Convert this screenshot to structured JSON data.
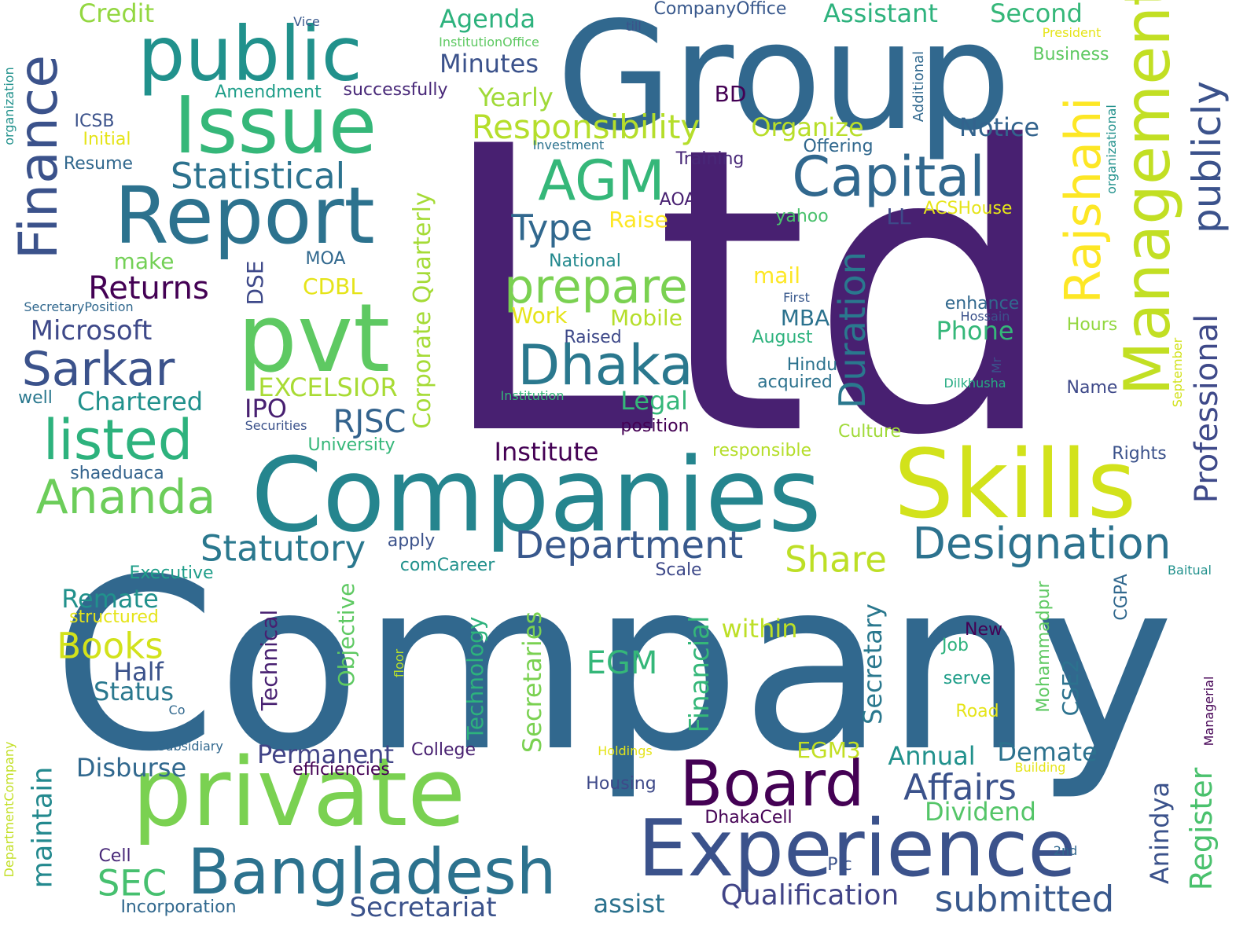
{
  "words": [
    {
      "text": "Company",
      "color": "#31688e"
    },
    {
      "text": "Ltd",
      "color": "#482071"
    },
    {
      "text": "Group",
      "color": "#31688e"
    },
    {
      "text": "Companies",
      "color": "#25858e"
    },
    {
      "text": "private",
      "color": "#7ad151"
    },
    {
      "text": "Skills",
      "color": "#d2e21b"
    },
    {
      "text": "pvt",
      "color": "#5ec962"
    },
    {
      "text": "Report",
      "color": "#2c728e"
    },
    {
      "text": "Issue",
      "color": "#35b779"
    },
    {
      "text": "public",
      "color": "#21918c"
    },
    {
      "text": "Experience",
      "color": "#3b528b"
    },
    {
      "text": "Board",
      "color": "#440154"
    },
    {
      "text": "Bangladesh",
      "color": "#2c728e"
    },
    {
      "text": "Management",
      "color": "#c2df23"
    },
    {
      "text": "Capital",
      "color": "#31688e"
    },
    {
      "text": "Dhaka",
      "color": "#2a788e"
    },
    {
      "text": "AGM",
      "color": "#35b779"
    },
    {
      "text": "listed",
      "color": "#2db27d"
    },
    {
      "text": "prepare",
      "color": "#7ad151"
    },
    {
      "text": "Sarkar",
      "color": "#3b528b"
    },
    {
      "text": "Designation",
      "color": "#2c728e"
    },
    {
      "text": "Ananda",
      "color": "#6ccd5a"
    },
    {
      "text": "Finance",
      "color": "#3b528b"
    },
    {
      "text": "Rajshahi",
      "color": "#fde725"
    },
    {
      "text": "publicly",
      "color": "#3b528b"
    },
    {
      "text": "Department",
      "color": "#38588c"
    },
    {
      "text": "Statutory",
      "color": "#2a788e"
    },
    {
      "text": "Share",
      "color": "#bddf26"
    },
    {
      "text": "Affairs",
      "color": "#3b528b"
    },
    {
      "text": "submitted",
      "color": "#38588c"
    },
    {
      "text": "Qualification",
      "color": "#414487"
    },
    {
      "text": "Secretariat",
      "color": "#3b528b"
    },
    {
      "text": "Statistical",
      "color": "#2c728e"
    },
    {
      "text": "Responsibility",
      "color": "#b5de2b"
    },
    {
      "text": "Type",
      "color": "#31688e"
    },
    {
      "text": "Duration",
      "color": "#2a788e"
    },
    {
      "text": "Corporate Quarterly",
      "color": "#a5db36"
    },
    {
      "text": "Professional",
      "color": "#3e4989"
    },
    {
      "text": "Register",
      "color": "#4ac16d"
    },
    {
      "text": "Anindya",
      "color": "#3b528b"
    },
    {
      "text": "Secretaries",
      "color": "#7ad151"
    },
    {
      "text": "Secretary",
      "color": "#2a788e"
    },
    {
      "text": "Financial",
      "color": "#35b779"
    },
    {
      "text": "maintain",
      "color": "#23898e"
    },
    {
      "text": "Books",
      "color": "#d2e21b"
    },
    {
      "text": "SEC",
      "color": "#46c06f"
    },
    {
      "text": "Returns",
      "color": "#440154"
    },
    {
      "text": "Microsoft",
      "color": "#3e4989"
    },
    {
      "text": "Chartered",
      "color": "#21918c"
    },
    {
      "text": "EXCELSIOR",
      "color": "#a8db34"
    },
    {
      "text": "RJSC",
      "color": "#33638d"
    },
    {
      "text": "IPO",
      "color": "#482071"
    },
    {
      "text": "EGM",
      "color": "#35b779"
    },
    {
      "text": "Minutes",
      "color": "#3b528b"
    },
    {
      "text": "Agenda",
      "color": "#2db27d"
    },
    {
      "text": "Yearly",
      "color": "#a0da39"
    },
    {
      "text": "Organize",
      "color": "#b8de29"
    },
    {
      "text": "Notice",
      "color": "#33638d"
    },
    {
      "text": "Assistant",
      "color": "#2db27d"
    },
    {
      "text": "Second",
      "color": "#35b779"
    },
    {
      "text": "Credit",
      "color": "#93d741"
    },
    {
      "text": "CompanyOffice",
      "color": "#38588c"
    },
    {
      "text": "Business",
      "color": "#5ec962"
    },
    {
      "text": "Amendment",
      "color": "#1f9e89"
    },
    {
      "text": "successfully",
      "color": "#482878"
    },
    {
      "text": "BD",
      "color": "#440154"
    },
    {
      "text": "ICSB",
      "color": "#3b528b"
    },
    {
      "text": "Initial",
      "color": "#e5e419"
    },
    {
      "text": "Resume",
      "color": "#31688e"
    },
    {
      "text": "Investment",
      "color": "#2c728e"
    },
    {
      "text": "Offering",
      "color": "#31688e"
    },
    {
      "text": "Training",
      "color": "#482878"
    },
    {
      "text": "AOA",
      "color": "#482071"
    },
    {
      "text": "Raise",
      "color": "#fde725"
    },
    {
      "text": "yahoo",
      "color": "#4ac16d"
    },
    {
      "text": "LL",
      "color": "#3e4989"
    },
    {
      "text": "ACSHouse",
      "color": "#e5e419"
    },
    {
      "text": "National",
      "color": "#23898e"
    },
    {
      "text": "make",
      "color": "#73d056"
    },
    {
      "text": "MOA",
      "color": "#31688e"
    },
    {
      "text": "DSE",
      "color": "#3e4989"
    },
    {
      "text": "CDBL",
      "color": "#e5e419"
    },
    {
      "text": "mail",
      "color": "#fde725"
    },
    {
      "text": "Work",
      "color": "#e5e419"
    },
    {
      "text": "Mobile",
      "color": "#b5de2b"
    },
    {
      "text": "MBA",
      "color": "#2c728e"
    },
    {
      "text": "Phone",
      "color": "#35b779"
    },
    {
      "text": "August",
      "color": "#2db27d"
    },
    {
      "text": "First",
      "color": "#38588c"
    },
    {
      "text": "enhance",
      "color": "#31688e"
    },
    {
      "text": "Hossain",
      "color": "#3b528b"
    },
    {
      "text": "Hours",
      "color": "#93d741"
    },
    {
      "text": "Raised",
      "color": "#3e4989"
    },
    {
      "text": "Hindu",
      "color": "#2c728e"
    },
    {
      "text": "acquired",
      "color": "#2c728e"
    },
    {
      "text": "Mr",
      "color": "#3b528b"
    },
    {
      "text": "Dilkhusha",
      "color": "#25ab82"
    },
    {
      "text": "Name",
      "color": "#3e4989"
    },
    {
      "text": "Rights",
      "color": "#3b528b"
    },
    {
      "text": "September",
      "color": "#d2e21b"
    },
    {
      "text": "Legal",
      "color": "#35b779"
    },
    {
      "text": "Institution",
      "color": "#35b779"
    },
    {
      "text": "position",
      "color": "#440154"
    },
    {
      "text": "Culture",
      "color": "#a0da39"
    },
    {
      "text": "responsible",
      "color": "#b5de2b"
    },
    {
      "text": "Institute",
      "color": "#440154"
    },
    {
      "text": "Securities",
      "color": "#3b528b"
    },
    {
      "text": "University",
      "color": "#35b779"
    },
    {
      "text": "well",
      "color": "#2a788e"
    },
    {
      "text": "SecretaryPosition",
      "color": "#31688e"
    },
    {
      "text": "shaeduaca",
      "color": "#33638d"
    },
    {
      "text": "apply",
      "color": "#3b528b"
    },
    {
      "text": "comCareer",
      "color": "#21918c"
    },
    {
      "text": "Executive",
      "color": "#1f9e89"
    },
    {
      "text": "Remate",
      "color": "#21918c"
    },
    {
      "text": "structured",
      "color": "#e5e419"
    },
    {
      "text": "Half",
      "color": "#3b528b"
    },
    {
      "text": "Status",
      "color": "#2a788e"
    },
    {
      "text": "Co",
      "color": "#31688e"
    },
    {
      "text": "Subsidiary",
      "color": "#31688e"
    },
    {
      "text": "Disburse",
      "color": "#31688e"
    },
    {
      "text": "efficiencies",
      "color": "#440154"
    },
    {
      "text": "Permanent",
      "color": "#414487"
    },
    {
      "text": "College",
      "color": "#482071"
    },
    {
      "text": "Technical",
      "color": "#482071"
    },
    {
      "text": "Objective",
      "color": "#5ec962"
    },
    {
      "text": "floor",
      "color": "#b5de2b"
    },
    {
      "text": "Technology",
      "color": "#2db27d"
    },
    {
      "text": "within",
      "color": "#bddf26"
    },
    {
      "text": "Scale",
      "color": "#3e4989"
    },
    {
      "text": "EGM3",
      "color": "#c2df23"
    },
    {
      "text": "Annual",
      "color": "#21918c"
    },
    {
      "text": "Demate",
      "color": "#2c728e"
    },
    {
      "text": "Dividend",
      "color": "#54c568"
    },
    {
      "text": "Housing",
      "color": "#3e4989"
    },
    {
      "text": "DhakaCell",
      "color": "#440154"
    },
    {
      "text": "Holdings",
      "color": "#e5e419"
    },
    {
      "text": "Building",
      "color": "#e5e419"
    },
    {
      "text": "New",
      "color": "#440154"
    },
    {
      "text": "Job",
      "color": "#2db27d"
    },
    {
      "text": "serve",
      "color": "#1f9e89"
    },
    {
      "text": "Road",
      "color": "#e5e419"
    },
    {
      "text": "CSE2",
      "color": "#2c728e"
    },
    {
      "text": "Mohammadpur",
      "color": "#5ec962"
    },
    {
      "text": "CGPA",
      "color": "#31688e"
    },
    {
      "text": "Managerial",
      "color": "#440154"
    },
    {
      "text": "Baitual",
      "color": "#21918c"
    },
    {
      "text": "2nd",
      "color": "#31688e"
    },
    {
      "text": "Plc",
      "color": "#3b528b"
    },
    {
      "text": "assist",
      "color": "#2c728e"
    },
    {
      "text": "Cell",
      "color": "#482878"
    },
    {
      "text": "Incorporation",
      "color": "#31688e"
    },
    {
      "text": "DepartmentCompany",
      "color": "#c2df23"
    },
    {
      "text": "organization",
      "color": "#21918c"
    },
    {
      "text": "Vice",
      "color": "#38588c"
    },
    {
      "text": "InstitutionOffice",
      "color": "#5ec962"
    },
    {
      "text": "till",
      "color": "#3b528b"
    },
    {
      "text": "President",
      "color": "#e5e419"
    },
    {
      "text": "Additional",
      "color": "#31688e"
    },
    {
      "text": "organizational",
      "color": "#21918c"
    }
  ]
}
